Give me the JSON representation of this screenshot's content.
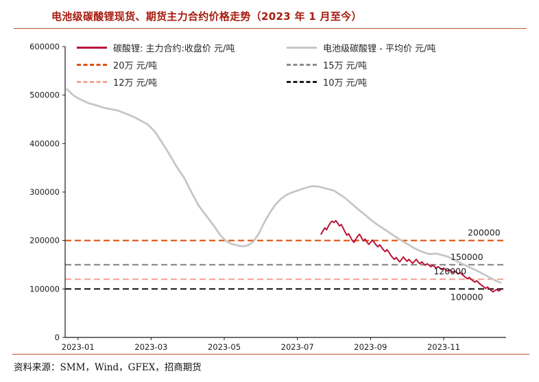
{
  "theme": {
    "bg": "#ffffff",
    "title-color": "#a61b0e",
    "rule-color": "#b4532a",
    "axis-color": "#1a1a1a",
    "text-color": "#262626"
  },
  "footer": {
    "source": "资料来源：SMM，Wind，GFEX，招商期货"
  },
  "chart_data": {
    "type": "line",
    "title": "电池级碳酸锂现货、期货主力合约价格走势（2023 年 1 月至今）",
    "xlabel": "",
    "ylabel": "",
    "x_axis": {
      "min": -0.35,
      "max": 11.65,
      "ticks": [
        {
          "label": "2023-01",
          "m": 0
        },
        {
          "label": "2023-03",
          "m": 2
        },
        {
          "label": "2023-05",
          "m": 4
        },
        {
          "label": "2023-07",
          "m": 6
        },
        {
          "label": "2023-09",
          "m": 8
        },
        {
          "label": "2023-11",
          "m": 10
        }
      ]
    },
    "y_axis": {
      "min": 0,
      "max": 600000,
      "ticks": [
        0,
        100000,
        200000,
        300000,
        400000,
        500000,
        600000
      ]
    },
    "grid": false,
    "legend_position": "top-inside",
    "series": [
      {
        "id": "series-spot-average",
        "name": "电池级碳酸锂 - 平均价 元/吨",
        "unit": "元/吨",
        "color": "#c6c6c6",
        "width": 2.8,
        "points": [
          [
            -0.3,
            512000
          ],
          [
            -0.1,
            498000
          ],
          [
            0.1,
            490000
          ],
          [
            0.3,
            483000
          ],
          [
            0.5,
            479000
          ],
          [
            0.7,
            474000
          ],
          [
            0.9,
            471000
          ],
          [
            1.1,
            468000
          ],
          [
            1.3,
            462000
          ],
          [
            1.5,
            456000
          ],
          [
            1.7,
            448000
          ],
          [
            1.9,
            440000
          ],
          [
            2.1,
            425000
          ],
          [
            2.3,
            402000
          ],
          [
            2.5,
            378000
          ],
          [
            2.7,
            352000
          ],
          [
            2.9,
            330000
          ],
          [
            3.1,
            300000
          ],
          [
            3.3,
            272000
          ],
          [
            3.5,
            252000
          ],
          [
            3.7,
            232000
          ],
          [
            3.9,
            210000
          ],
          [
            4.05,
            199000
          ],
          [
            4.2,
            193000
          ],
          [
            4.35,
            190000
          ],
          [
            4.5,
            188000
          ],
          [
            4.65,
            190000
          ],
          [
            4.8,
            198000
          ],
          [
            4.95,
            215000
          ],
          [
            5.1,
            238000
          ],
          [
            5.25,
            258000
          ],
          [
            5.4,
            274000
          ],
          [
            5.55,
            286000
          ],
          [
            5.7,
            294000
          ],
          [
            5.85,
            299000
          ],
          [
            6.0,
            303000
          ],
          [
            6.2,
            308000
          ],
          [
            6.4,
            312000
          ],
          [
            6.6,
            311000
          ],
          [
            6.8,
            307000
          ],
          [
            7.0,
            303000
          ],
          [
            7.1,
            298000
          ],
          [
            7.3,
            288000
          ],
          [
            7.5,
            275000
          ],
          [
            7.7,
            262000
          ],
          [
            7.9,
            250000
          ],
          [
            8.0,
            243000
          ],
          [
            8.2,
            232000
          ],
          [
            8.4,
            222000
          ],
          [
            8.6,
            212000
          ],
          [
            8.8,
            202000
          ],
          [
            9.0,
            193000
          ],
          [
            9.2,
            184000
          ],
          [
            9.4,
            177000
          ],
          [
            9.6,
            172000
          ],
          [
            9.8,
            173000
          ],
          [
            10.0,
            169000
          ],
          [
            10.1,
            167000
          ],
          [
            10.3,
            160000
          ],
          [
            10.5,
            152000
          ],
          [
            10.7,
            145000
          ],
          [
            10.9,
            138000
          ],
          [
            11.1,
            130000
          ],
          [
            11.3,
            122000
          ],
          [
            11.45,
            116000
          ],
          [
            11.55,
            113000
          ]
        ]
      },
      {
        "id": "series-futures-close",
        "name": "碳酸锂: 主力合约:收盘价 元/吨",
        "unit": "元/吨",
        "color": "#b81237",
        "width": 2,
        "points": [
          [
            6.65,
            213000
          ],
          [
            6.7,
            220000
          ],
          [
            6.75,
            226000
          ],
          [
            6.8,
            222000
          ],
          [
            6.85,
            230000
          ],
          [
            6.9,
            236000
          ],
          [
            6.95,
            240000
          ],
          [
            7.0,
            237000
          ],
          [
            7.05,
            241000
          ],
          [
            7.1,
            236000
          ],
          [
            7.15,
            230000
          ],
          [
            7.2,
            233000
          ],
          [
            7.25,
            226000
          ],
          [
            7.3,
            218000
          ],
          [
            7.35,
            211000
          ],
          [
            7.4,
            214000
          ],
          [
            7.45,
            207000
          ],
          [
            7.5,
            200000
          ],
          [
            7.55,
            196000
          ],
          [
            7.6,
            203000
          ],
          [
            7.65,
            209000
          ],
          [
            7.7,
            213000
          ],
          [
            7.75,
            206000
          ],
          [
            7.8,
            199000
          ],
          [
            7.85,
            203000
          ],
          [
            7.9,
            197000
          ],
          [
            7.95,
            192000
          ],
          [
            8.0,
            196000
          ],
          [
            8.05,
            201000
          ],
          [
            8.1,
            196000
          ],
          [
            8.15,
            191000
          ],
          [
            8.2,
            187000
          ],
          [
            8.25,
            191000
          ],
          [
            8.3,
            186000
          ],
          [
            8.35,
            181000
          ],
          [
            8.4,
            177000
          ],
          [
            8.45,
            181000
          ],
          [
            8.5,
            176000
          ],
          [
            8.55,
            170000
          ],
          [
            8.6,
            165000
          ],
          [
            8.65,
            161000
          ],
          [
            8.7,
            165000
          ],
          [
            8.75,
            160000
          ],
          [
            8.8,
            156000
          ],
          [
            8.85,
            161000
          ],
          [
            8.9,
            166000
          ],
          [
            8.95,
            161000
          ],
          [
            9.0,
            157000
          ],
          [
            9.05,
            161000
          ],
          [
            9.1,
            157000
          ],
          [
            9.15,
            153000
          ],
          [
            9.2,
            157000
          ],
          [
            9.25,
            161000
          ],
          [
            9.3,
            156000
          ],
          [
            9.35,
            152000
          ],
          [
            9.4,
            156000
          ],
          [
            9.45,
            152000
          ],
          [
            9.5,
            149000
          ],
          [
            9.55,
            152000
          ],
          [
            9.6,
            149000
          ],
          [
            9.65,
            146000
          ],
          [
            9.7,
            149000
          ],
          [
            9.75,
            146000
          ],
          [
            9.8,
            143000
          ],
          [
            9.85,
            146000
          ],
          [
            9.9,
            143000
          ],
          [
            9.95,
            140000
          ],
          [
            10.0,
            143000
          ],
          [
            10.05,
            140000
          ],
          [
            10.1,
            137000
          ],
          [
            10.15,
            140000
          ],
          [
            10.2,
            137000
          ],
          [
            10.25,
            134000
          ],
          [
            10.3,
            137000
          ],
          [
            10.35,
            134000
          ],
          [
            10.4,
            131000
          ],
          [
            10.45,
            134000
          ],
          [
            10.5,
            130000
          ],
          [
            10.55,
            127000
          ],
          [
            10.6,
            124000
          ],
          [
            10.65,
            121000
          ],
          [
            10.7,
            124000
          ],
          [
            10.75,
            120000
          ],
          [
            10.8,
            117000
          ],
          [
            10.85,
            114000
          ],
          [
            10.9,
            117000
          ],
          [
            10.95,
            113000
          ],
          [
            11.0,
            110000
          ],
          [
            11.05,
            107000
          ],
          [
            11.1,
            104000
          ],
          [
            11.15,
            101000
          ],
          [
            11.2,
            104000
          ],
          [
            11.25,
            100000
          ],
          [
            11.3,
            97000
          ],
          [
            11.35,
            94000
          ],
          [
            11.4,
            97000
          ],
          [
            11.45,
            99000
          ],
          [
            11.5,
            96000
          ],
          [
            11.55,
            98000
          ]
        ]
      }
    ],
    "ref_lines": [
      {
        "label": "20万 元/吨",
        "value": 200000,
        "color": "#e0500f"
      },
      {
        "label": "15万 元/吨",
        "value": 150000,
        "color": "#8c8c8c"
      },
      {
        "label": "12万 元/吨",
        "value": 120000,
        "color": "#f3a396"
      },
      {
        "label": "10万 元/吨",
        "value": 100000,
        "color": "#1a1a1a"
      }
    ],
    "annotations": [
      {
        "text": "200000",
        "value": 200000,
        "x_m": 11.55,
        "dy": -7
      },
      {
        "text": "150000",
        "value": 150000,
        "x_m": 11.08,
        "dy": -7
      },
      {
        "text": "120000",
        "value": 120000,
        "x_m": 10.62,
        "dy": -7
      },
      {
        "text": "100000",
        "value": 100000,
        "x_m": 11.08,
        "dy": 16
      }
    ],
    "legend_rows": [
      [
        {
          "style": "solid",
          "color": "#b81237",
          "label": "碳酸锂: 主力合约:收盘价 元/吨"
        },
        {
          "style": "solid",
          "color": "#c6c6c6",
          "label": "电池级碳酸锂 - 平均价 元/吨"
        }
      ],
      [
        {
          "style": "dashed",
          "color": "#e0500f",
          "label": "20万 元/吨"
        },
        {
          "style": "dashed",
          "color": "#8c8c8c",
          "label": "15万 元/吨"
        }
      ],
      [
        {
          "style": "dashed",
          "color": "#f3a396",
          "label": "12万 元/吨"
        },
        {
          "style": "dashed",
          "color": "#1a1a1a",
          "label": "10万 元/吨"
        }
      ]
    ]
  }
}
